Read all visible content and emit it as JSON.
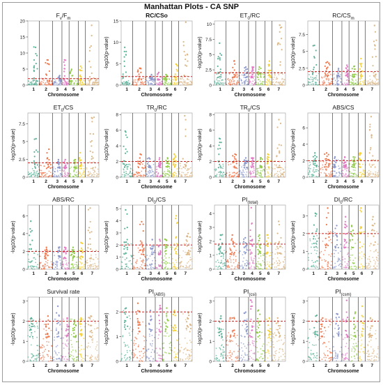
{
  "figure": {
    "title": "Manhattan Plots - CA SNP"
  },
  "colors": {
    "chromosomes": [
      "#5fb39a",
      "#f07a50",
      "#8e9acd",
      "#e27ac4",
      "#93cc4c",
      "#f5d23a",
      "#dcb888"
    ],
    "threshold": "#cc2020",
    "divider": "#222222"
  },
  "chart_data": [
    {
      "type": "scatter",
      "title": "Fv/Fm",
      "title_parts": [
        [
          "F",
          ""
        ],
        [
          "v",
          "sub"
        ],
        [
          "/F",
          ""
        ],
        [
          "m",
          "sub"
        ]
      ],
      "bold": false,
      "xlabel": "Chromosome",
      "ylabel": "",
      "yticks": [
        0,
        5,
        10,
        15,
        20
      ],
      "ylim": [
        0,
        20
      ],
      "threshold": 2,
      "categories": [
        "1",
        "2",
        "3",
        "4",
        "5",
        "6",
        "7"
      ],
      "peaks": [
        [
          0,
          12
        ],
        [
          1,
          8
        ],
        [
          2,
          3
        ],
        [
          3,
          8
        ],
        [
          4,
          5
        ],
        [
          5,
          6
        ],
        [
          6,
          19
        ]
      ]
    },
    {
      "type": "scatter",
      "title": "RC/CSo",
      "title_parts": [
        [
          "RC/CSo",
          ""
        ]
      ],
      "bold": true,
      "xlabel": "Chromosome",
      "ylabel": "-log10(p-value)",
      "yticks": [
        0,
        5,
        10,
        15
      ],
      "ylim": [
        0,
        15
      ],
      "threshold": 2,
      "categories": [
        "1",
        "2",
        "3",
        "4",
        "5",
        "6",
        "7"
      ],
      "peaks": [
        [
          0,
          9
        ],
        [
          1,
          4
        ],
        [
          2,
          2.5
        ],
        [
          3,
          3
        ],
        [
          4,
          2.5
        ],
        [
          5,
          5
        ],
        [
          6,
          15
        ]
      ]
    },
    {
      "type": "scatter",
      "title": "ET0/RC",
      "title_parts": [
        [
          "ET",
          ""
        ],
        [
          "0",
          "sub"
        ],
        [
          "/RC",
          ""
        ]
      ],
      "bold": false,
      "xlabel": "Chromosome",
      "ylabel": "-log10(p-value)",
      "yticks": [
        0,
        2.5,
        5,
        7.5,
        10
      ],
      "ylim": [
        0,
        10.5
      ],
      "threshold": 2,
      "categories": [
        "1",
        "2",
        "3",
        "4",
        "5",
        "6",
        "7"
      ],
      "peaks": [
        [
          0,
          7
        ],
        [
          1,
          4
        ],
        [
          2,
          3
        ],
        [
          3,
          3
        ],
        [
          4,
          3
        ],
        [
          5,
          4
        ],
        [
          6,
          10
        ]
      ]
    },
    {
      "type": "scatter",
      "title": "RC/CSm",
      "title_parts": [
        [
          "RC/CS",
          ""
        ],
        [
          "m",
          "sub"
        ]
      ],
      "bold": false,
      "xlabel": "Chromosome",
      "ylabel": "-log10(p-value)",
      "yticks": [
        0,
        2.5,
        5,
        7.5
      ],
      "ylim": [
        0,
        9.5
      ],
      "threshold": 2,
      "categories": [
        "1",
        "2",
        "3",
        "4",
        "5",
        "6",
        "7"
      ],
      "peaks": [
        [
          0,
          6
        ],
        [
          1,
          3.5
        ],
        [
          2,
          2.5
        ],
        [
          3,
          3
        ],
        [
          4,
          2.8
        ],
        [
          5,
          4
        ],
        [
          6,
          9
        ]
      ]
    },
    {
      "type": "scatter",
      "title": "ET0/CS",
      "title_parts": [
        [
          "ET",
          ""
        ],
        [
          "0",
          "sub"
        ],
        [
          "/CS",
          ""
        ]
      ],
      "bold": false,
      "xlabel": "Chromosome",
      "ylabel": "-log10(p-value)",
      "yticks": [
        0,
        2.5,
        5,
        7.5
      ],
      "ylim": [
        0,
        9
      ],
      "threshold": 2,
      "categories": [
        "1",
        "2",
        "3",
        "4",
        "5",
        "6",
        "7"
      ],
      "peaks": [
        [
          0,
          5.5
        ],
        [
          1,
          4
        ],
        [
          2,
          2.5
        ],
        [
          3,
          2.5
        ],
        [
          4,
          2.5
        ],
        [
          5,
          3.5
        ],
        [
          6,
          8.5
        ]
      ]
    },
    {
      "type": "scatter",
      "title": "TR0/RC",
      "title_parts": [
        [
          "TR",
          ""
        ],
        [
          "0",
          "sub"
        ],
        [
          "/RC",
          ""
        ]
      ],
      "bold": false,
      "xlabel": "Chromosome",
      "ylabel": "-log10(p-value)",
      "yticks": [
        0,
        2,
        4,
        6,
        8
      ],
      "ylim": [
        0,
        8.2
      ],
      "threshold": 2,
      "categories": [
        "1",
        "2",
        "3",
        "4",
        "5",
        "6",
        "7"
      ],
      "peaks": [
        [
          0,
          6
        ],
        [
          1,
          3
        ],
        [
          2,
          2.5
        ],
        [
          3,
          2.5
        ],
        [
          4,
          2.5
        ],
        [
          5,
          3
        ],
        [
          6,
          8
        ]
      ]
    },
    {
      "type": "scatter",
      "title": "TR0/CS",
      "title_parts": [
        [
          "TR",
          ""
        ],
        [
          "0",
          "sub"
        ],
        [
          "/CS",
          ""
        ]
      ],
      "bold": false,
      "xlabel": "Chromosome",
      "ylabel": "-log10(p-value)",
      "yticks": [
        0,
        2,
        4,
        6,
        8
      ],
      "ylim": [
        0,
        8.2
      ],
      "threshold": 2,
      "categories": [
        "1",
        "2",
        "3",
        "4",
        "5",
        "6",
        "7"
      ],
      "peaks": [
        [
          0,
          5
        ],
        [
          1,
          3
        ],
        [
          2,
          2.5
        ],
        [
          3,
          2.5
        ],
        [
          4,
          2.5
        ],
        [
          5,
          3
        ],
        [
          6,
          7.5
        ]
      ]
    },
    {
      "type": "scatter",
      "title": "ABS/CS",
      "title_parts": [
        [
          "ABS/CS",
          ""
        ]
      ],
      "bold": false,
      "xlabel": "Chromosome",
      "ylabel": "-log10(p-value)",
      "yticks": [
        0,
        2,
        4,
        6
      ],
      "ylim": [
        0,
        7.8
      ],
      "threshold": 2,
      "categories": [
        "1",
        "2",
        "3",
        "4",
        "5",
        "6",
        "7"
      ],
      "peaks": [
        [
          0,
          3
        ],
        [
          1,
          3
        ],
        [
          2,
          2.5
        ],
        [
          3,
          2.5
        ],
        [
          4,
          2.5
        ],
        [
          5,
          3
        ],
        [
          6,
          7.5
        ]
      ]
    },
    {
      "type": "scatter",
      "title": "ABS/RC",
      "title_parts": [
        [
          "ABS/RC",
          ""
        ]
      ],
      "bold": false,
      "xlabel": "Chromosome",
      "ylabel": "-log10(p-value)",
      "yticks": [
        0,
        2,
        4,
        6
      ],
      "ylim": [
        0,
        7.2
      ],
      "threshold": 2,
      "categories": [
        "1",
        "2",
        "3",
        "4",
        "5",
        "6",
        "7"
      ],
      "peaks": [
        [
          0,
          5.5
        ],
        [
          1,
          2.5
        ],
        [
          2,
          2.5
        ],
        [
          3,
          2.5
        ],
        [
          4,
          2.5
        ],
        [
          5,
          3
        ],
        [
          6,
          7
        ]
      ]
    },
    {
      "type": "scatter",
      "title": "DI0/CS",
      "title_parts": [
        [
          "DI",
          ""
        ],
        [
          "0",
          "sub"
        ],
        [
          "/CS",
          ""
        ]
      ],
      "bold": false,
      "xlabel": "Chromosome",
      "ylabel": "-log10(p-value)",
      "yticks": [
        0,
        1,
        2,
        3,
        4,
        5
      ],
      "ylim": [
        0,
        5.3
      ],
      "threshold": 2,
      "categories": [
        "1",
        "2",
        "3",
        "4",
        "5",
        "6",
        "7"
      ],
      "peaks": [
        [
          0,
          5
        ],
        [
          1,
          4
        ],
        [
          2,
          2.5
        ],
        [
          3,
          2.5
        ],
        [
          4,
          2.5
        ],
        [
          5,
          4.5
        ],
        [
          6,
          3
        ]
      ]
    },
    {
      "type": "scatter",
      "title": "PI(total)",
      "title_parts": [
        [
          "PI",
          ""
        ],
        [
          "(total)",
          "sub"
        ]
      ],
      "bold": false,
      "xlabel": "Chromosome",
      "ylabel": "-log10(p-value)",
      "yticks": [
        0,
        1,
        2,
        3,
        4
      ],
      "ylim": [
        0,
        4.6
      ],
      "threshold": 1.8,
      "categories": [
        "1",
        "2",
        "3",
        "4",
        "5",
        "6",
        "7"
      ],
      "peaks": [
        [
          0,
          2.5
        ],
        [
          1,
          2.5
        ],
        [
          2,
          2.3
        ],
        [
          3,
          4.5
        ],
        [
          4,
          2.5
        ],
        [
          5,
          2.5
        ],
        [
          6,
          3.5
        ]
      ]
    },
    {
      "type": "scatter",
      "title": "DI0/RC",
      "title_parts": [
        [
          "DI",
          ""
        ],
        [
          "0",
          "sub"
        ],
        [
          "/RC",
          ""
        ]
      ],
      "bold": false,
      "xlabel": "Chromosome",
      "ylabel": "-log10(p-value)",
      "yticks": [
        0,
        1,
        2,
        3
      ],
      "ylim": [
        0,
        3.6
      ],
      "threshold": 2,
      "categories": [
        "1",
        "2",
        "3",
        "4",
        "5",
        "6",
        "7"
      ],
      "peaks": [
        [
          0,
          3.2
        ],
        [
          1,
          3.5
        ],
        [
          2,
          2.5
        ],
        [
          3,
          3
        ],
        [
          4,
          2.5
        ],
        [
          5,
          3.5
        ],
        [
          6,
          3
        ]
      ]
    },
    {
      "type": "scatter",
      "title": "Survival rate",
      "title_parts": [
        [
          "Survival rate",
          ""
        ]
      ],
      "bold": false,
      "xlabel": "Chromosome",
      "ylabel": "-log10(p-value)",
      "yticks": [
        0,
        1,
        2,
        3
      ],
      "ylim": [
        0,
        3.2
      ],
      "threshold": 2,
      "categories": [
        "1",
        "2",
        "3",
        "4",
        "5",
        "6",
        "7"
      ],
      "peaks": [
        [
          0,
          2.2
        ],
        [
          1,
          2.3
        ],
        [
          2,
          2.8
        ],
        [
          3,
          2.2
        ],
        [
          4,
          2.1
        ],
        [
          5,
          2.2
        ],
        [
          6,
          2.3
        ]
      ]
    },
    {
      "type": "scatter",
      "title": "PI(ABS)",
      "title_parts": [
        [
          "PI",
          ""
        ],
        [
          "(ABS)",
          "sub"
        ]
      ],
      "bold": false,
      "xlabel": "Chromosome",
      "ylabel": "-log10(p-value)",
      "yticks": [
        0,
        1,
        2
      ],
      "ylim": [
        0,
        2.6
      ],
      "threshold": 2,
      "categories": [
        "1",
        "2",
        "3",
        "4",
        "5",
        "6",
        "7"
      ],
      "peaks": [
        [
          0,
          2.2
        ],
        [
          1,
          2.4
        ],
        [
          2,
          2.1
        ],
        [
          3,
          2.3
        ],
        [
          4,
          2.2
        ],
        [
          5,
          2.1
        ],
        [
          6,
          2
        ]
      ]
    },
    {
      "type": "scatter",
      "title": "PI(csi)",
      "title_parts": [
        [
          "PI",
          ""
        ],
        [
          "(csi)",
          "sub"
        ]
      ],
      "bold": false,
      "xlabel": "Chromosome",
      "ylabel": "-log10(p-value)",
      "yticks": [
        0,
        1,
        2,
        3
      ],
      "ylim": [
        0,
        3.2
      ],
      "threshold": 2,
      "categories": [
        "1",
        "2",
        "3",
        "4",
        "5",
        "6",
        "7"
      ],
      "peaks": [
        [
          0,
          2.3
        ],
        [
          1,
          2.2
        ],
        [
          2,
          2.5
        ],
        [
          3,
          3.1
        ],
        [
          4,
          2.6
        ],
        [
          5,
          2.2
        ],
        [
          6,
          2.2
        ]
      ]
    },
    {
      "type": "scatter",
      "title": "PI(csm)",
      "title_parts": [
        [
          "PI",
          ""
        ],
        [
          "(csm)",
          "sub"
        ]
      ],
      "bold": false,
      "xlabel": "Chromosome",
      "ylabel": "-log10(p-value)",
      "yticks": [
        0,
        1,
        2,
        3
      ],
      "ylim": [
        0,
        3.2
      ],
      "threshold": 2,
      "categories": [
        "1",
        "2",
        "3",
        "4",
        "5",
        "6",
        "7"
      ],
      "peaks": [
        [
          0,
          2.3
        ],
        [
          1,
          2.2
        ],
        [
          2,
          2.4
        ],
        [
          3,
          3.1
        ],
        [
          4,
          2.5
        ],
        [
          5,
          2.8
        ],
        [
          6,
          2.2
        ]
      ]
    }
  ]
}
